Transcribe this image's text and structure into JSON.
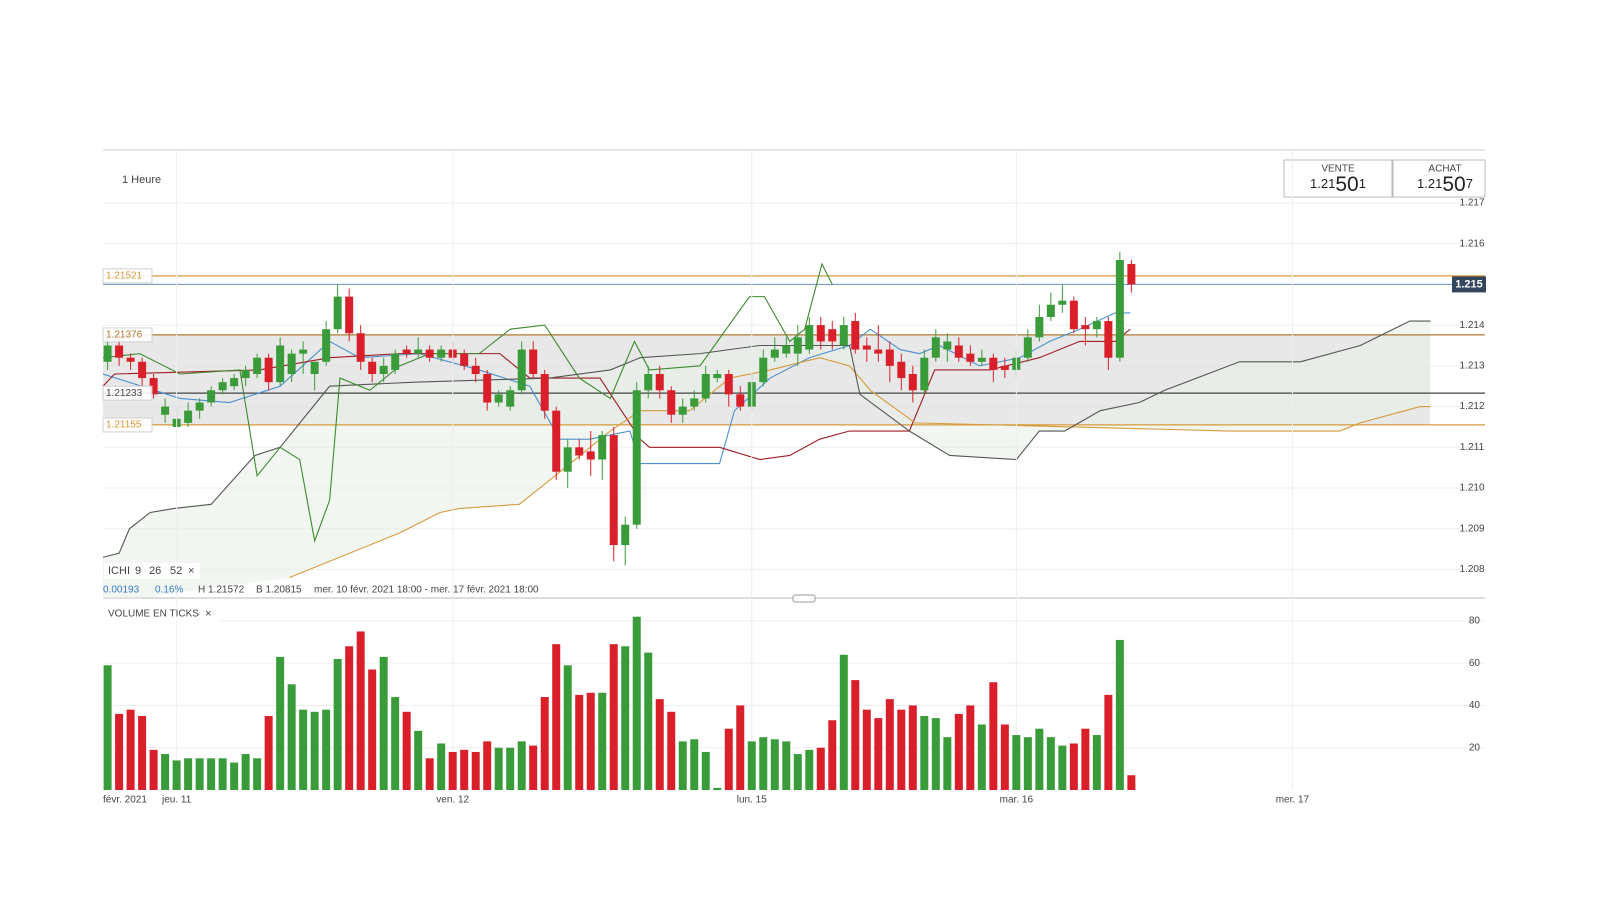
{
  "chart_data": [
    {
      "type": "candlestick",
      "timeframe": "1 Heure",
      "up_color": "#3a9b3a",
      "down_color": "#d9202a",
      "xlim": [
        -0.4,
        116.7
      ],
      "xticks": [
        {
          "value": 0,
          "label": "févr. 2021"
        },
        {
          "value": 6,
          "label": "jeu. 11"
        },
        {
          "value": 30,
          "label": "ven. 12"
        },
        {
          "value": 56,
          "label": "lun. 15"
        },
        {
          "value": 79,
          "label": "mar. 16"
        },
        {
          "value": 103,
          "label": "mer. 17"
        }
      ],
      "ylim": [
        1.2073,
        1.2183
      ],
      "yticks": [
        1.208,
        1.209,
        {
          "value": 1.21,
          "label": "1.210"
        },
        1.211,
        1.212,
        1.213,
        1.214,
        1.215,
        1.216,
        1.217
      ],
      "grid": true,
      "open": [
        1.2131,
        1.2135,
        1.2132,
        1.2131,
        1.2127,
        1.2118,
        1.2115,
        1.2116,
        1.2119,
        1.2121,
        1.2124,
        1.2125,
        1.2127,
        1.2128,
        1.2132,
        1.2126,
        1.2128,
        1.2133,
        1.2128,
        1.2131,
        1.2139,
        1.2147,
        1.2138,
        1.2131,
        1.2128,
        1.2129,
        1.2134,
        1.2133,
        1.2134,
        1.2132,
        1.2134,
        1.2133,
        1.213,
        1.2128,
        1.2121,
        1.212,
        1.2124,
        1.2134,
        1.2128,
        1.2119,
        1.2104,
        1.211,
        1.2109,
        1.2107,
        1.2113,
        1.2086,
        1.2091,
        1.2124,
        1.2128,
        1.2124,
        1.2118,
        1.212,
        1.2122,
        1.2127,
        1.2128,
        1.2123,
        1.212,
        1.2126,
        1.2132,
        1.2133,
        1.2133,
        1.2134,
        1.214,
        1.2139,
        1.2135,
        1.2141,
        1.2135,
        1.2134,
        1.2134,
        1.2131,
        1.2128,
        1.2124,
        1.2132,
        1.2134,
        1.2135,
        1.2133,
        1.2131,
        1.2132,
        1.213,
        1.2129,
        1.2132,
        1.2137,
        1.2142,
        1.2145,
        1.2146,
        1.214,
        1.2139,
        1.2141,
        1.2132,
        1.2155
      ],
      "high": [
        1.2137,
        1.2138,
        1.2133,
        1.2132,
        1.2128,
        1.2122,
        1.212,
        1.2121,
        1.2122,
        1.2125,
        1.2127,
        1.2128,
        1.213,
        1.2133,
        1.2133,
        1.2137,
        1.2134,
        1.2136,
        1.2131,
        1.2141,
        1.215,
        1.2149,
        1.214,
        1.2132,
        1.2132,
        1.2134,
        1.2135,
        1.2137,
        1.2135,
        1.2135,
        1.2136,
        1.2134,
        1.2132,
        1.2129,
        1.2124,
        1.2125,
        1.2136,
        1.2136,
        1.2129,
        1.212,
        1.2112,
        1.2112,
        1.2114,
        1.2114,
        1.2115,
        1.2093,
        1.2126,
        1.213,
        1.213,
        1.2125,
        1.2122,
        1.2124,
        1.213,
        1.2129,
        1.2129,
        1.2125,
        1.2128,
        1.2134,
        1.2137,
        1.2137,
        1.214,
        1.2142,
        1.2142,
        1.2141,
        1.2142,
        1.2143,
        1.2137,
        1.214,
        1.2136,
        1.2133,
        1.213,
        1.2134,
        1.2139,
        1.2138,
        1.2137,
        1.2135,
        1.2134,
        1.2133,
        1.2132,
        1.2134,
        1.2139,
        1.2145,
        1.2148,
        1.215,
        1.2147,
        1.2142,
        1.2142,
        1.2142,
        1.2158,
        1.2156
      ],
      "low": [
        1.2129,
        1.213,
        1.2129,
        1.2125,
        1.2122,
        1.2116,
        1.2115,
        1.2115,
        1.2117,
        1.212,
        1.2123,
        1.2124,
        1.2125,
        1.2127,
        1.2124,
        1.2125,
        1.2126,
        1.2128,
        1.2124,
        1.213,
        1.2138,
        1.2136,
        1.2129,
        1.2126,
        1.2126,
        1.2128,
        1.2132,
        1.2132,
        1.2131,
        1.2131,
        1.2131,
        1.2129,
        1.2126,
        1.2119,
        1.212,
        1.2119,
        1.2123,
        1.2127,
        1.2117,
        1.2102,
        1.21,
        1.2107,
        1.2103,
        1.2102,
        1.2082,
        1.2081,
        1.209,
        1.2122,
        1.2122,
        1.2116,
        1.2116,
        1.2119,
        1.2121,
        1.2126,
        1.212,
        1.2119,
        1.2119,
        1.2125,
        1.2131,
        1.2132,
        1.213,
        1.2133,
        1.2134,
        1.2134,
        1.2134,
        1.2133,
        1.2131,
        1.2131,
        1.2126,
        1.2124,
        1.2121,
        1.2123,
        1.2131,
        1.2131,
        1.2131,
        1.213,
        1.213,
        1.2126,
        1.2127,
        1.2127,
        1.2131,
        1.2136,
        1.2141,
        1.2143,
        1.2138,
        1.2135,
        1.2137,
        1.2129,
        1.2131,
        1.2148
      ],
      "close": [
        1.2135,
        1.2132,
        1.2131,
        1.2127,
        1.2123,
        1.212,
        1.2117,
        1.2119,
        1.2121,
        1.2124,
        1.2126,
        1.2127,
        1.2129,
        1.2132,
        1.2126,
        1.2135,
        1.2133,
        1.2134,
        1.2131,
        1.2139,
        1.2147,
        1.2138,
        1.2131,
        1.2128,
        1.213,
        1.2133,
        1.2133,
        1.2134,
        1.2132,
        1.2134,
        1.2132,
        1.213,
        1.2128,
        1.2121,
        1.2123,
        1.2124,
        1.2134,
        1.2128,
        1.2119,
        1.2104,
        1.211,
        1.2108,
        1.2107,
        1.2113,
        1.2086,
        1.2091,
        1.2124,
        1.2128,
        1.2124,
        1.2118,
        1.212,
        1.2122,
        1.2128,
        1.2128,
        1.2123,
        1.212,
        1.2126,
        1.2132,
        1.2134,
        1.2135,
        1.2137,
        1.214,
        1.2136,
        1.2136,
        1.214,
        1.2134,
        1.2134,
        1.2133,
        1.213,
        1.2127,
        1.2124,
        1.2132,
        1.2137,
        1.2136,
        1.2132,
        1.2131,
        1.2132,
        1.2129,
        1.2129,
        1.2132,
        1.2137,
        1.2142,
        1.2145,
        1.2146,
        1.2139,
        1.2139,
        1.2141,
        1.2132,
        1.2156,
        1.215
      ],
      "lines": [
        {
          "color": "#4a8fd0",
          "x": [
            -0.4,
            6.3,
            10.6,
            15.0,
            19.3,
            21.9,
            27.1,
            32.3,
            36.7,
            39.3,
            41.9,
            45.4,
            46.3,
            53.2,
            54.5,
            57.6,
            61.0,
            64.5,
            66.3,
            68.9,
            70.6,
            72.3,
            75.8,
            79.3,
            81.9,
            84.5,
            87.6,
            88.9
          ],
          "values": [
            1.2128,
            1.2122,
            1.2121,
            1.2125,
            1.2136,
            1.2132,
            1.2133,
            1.2129,
            1.2125,
            1.2112,
            1.2112,
            1.2114,
            1.2106,
            1.2106,
            1.2119,
            1.2127,
            1.2132,
            1.2135,
            1.2139,
            1.2134,
            1.2133,
            1.2135,
            1.213,
            1.2132,
            1.2136,
            1.2139,
            1.2143,
            1.2143
          ]
        },
        {
          "color": "#a01c22",
          "x": [
            -0.4,
            0.6,
            13.2,
            19.3,
            25.4,
            34.1,
            36.7,
            42.8,
            46.3,
            47.1,
            53.2,
            56.7,
            59.3,
            61.9,
            64.5,
            69.7,
            71.9,
            76.7,
            81.0,
            84.5,
            87.6,
            88.9
          ],
          "values": [
            1.2125,
            1.2128,
            1.2129,
            1.2132,
            1.2133,
            1.2133,
            1.2127,
            1.2127,
            1.2112,
            1.211,
            1.211,
            1.2107,
            1.2108,
            1.2112,
            1.2114,
            1.2114,
            1.2129,
            1.2129,
            1.2132,
            1.2136,
            1.2136,
            1.2139
          ]
        },
        {
          "color": "#d69a3c",
          "x": [
            15.8,
            25.4,
            28.9,
            30.6,
            35.8,
            38.9,
            43.7,
            46.3,
            50.6,
            54.1,
            57.6,
            61.9,
            64.5,
            66.3,
            70.2,
            97.6,
            107.1,
            108.9,
            114.1,
            115.0
          ],
          "values": [
            1.2078,
            1.2089,
            1.2094,
            1.2095,
            1.2096,
            1.2103,
            1.2114,
            1.2119,
            1.2119,
            1.2127,
            1.2129,
            1.2132,
            1.213,
            1.2124,
            1.2116,
            1.2114,
            1.2114,
            1.2116,
            1.212,
            1.212
          ]
        },
        {
          "color": "#555555",
          "x": [
            -0.4,
            1.0,
            1.9,
            3.7,
            5.8,
            9.0,
            12.8,
            15.0,
            19.3,
            26.7,
            38.4,
            43.7,
            46.3,
            51.5,
            56.7,
            64.5,
            65.4,
            69.7,
            73.2,
            79.0,
            81.0,
            83.2,
            86.3,
            89.7,
            91.9,
            98.4,
            103.7,
            108.9,
            113.2,
            115.0
          ],
          "values": [
            1.2083,
            1.2084,
            1.209,
            1.2094,
            1.2095,
            1.2096,
            1.2108,
            1.211,
            1.2125,
            1.2126,
            1.2127,
            1.2129,
            1.2132,
            1.2133,
            1.2135,
            1.2135,
            1.2123,
            1.2114,
            1.2108,
            1.2107,
            1.2114,
            1.2114,
            1.2119,
            1.2121,
            1.2124,
            1.2131,
            1.2131,
            1.2135,
            1.2141,
            1.2141
          ]
        },
        {
          "color": "#3c8a2e",
          "x": [
            -0.4,
            2.8,
            6.3,
            11.5,
            13.0,
            15.0,
            16.7,
            18.0,
            19.3,
            20.2,
            22.8,
            25.4,
            28.0,
            32.3,
            35.0,
            38.0,
            41.0,
            43.7,
            45.8,
            47.1,
            51.5,
            55.8,
            57.1,
            59.3,
            60.6,
            62.1,
            63.0
          ],
          "values": [
            1.2132,
            1.2133,
            1.2128,
            1.2129,
            1.2103,
            1.211,
            1.2107,
            1.2087,
            1.2097,
            1.2127,
            1.2124,
            1.213,
            1.2133,
            1.2133,
            1.2139,
            1.214,
            1.2127,
            1.2122,
            1.2136,
            1.2129,
            1.213,
            1.2147,
            1.2147,
            1.2136,
            1.2139,
            1.2155,
            1.215
          ]
        }
      ],
      "levels": [
        {
          "value": 1.21521,
          "color": "#d69a3c"
        },
        {
          "value": 1.21376,
          "color": "#b07a30"
        },
        {
          "value": 1.21233,
          "color": "#444444"
        },
        {
          "value": 1.21155,
          "color": "#d69a3c"
        }
      ],
      "last_price": {
        "value": 1.215,
        "color": "#6a8fd0"
      },
      "indicator": {
        "name": "ICHI",
        "params": [
          9,
          26,
          52
        ],
        "close": "×"
      },
      "info": {
        "change": "0.00193",
        "change_pct": "0.16%",
        "high": "H 1.21572",
        "low": "B 1.20815",
        "range": "mer. 10 févr. 2021 18:00 - mer. 17 févr. 2021 18:00"
      }
    },
    {
      "type": "bar",
      "title": "VOLUME EN TICKS",
      "close": "×",
      "ylim": [
        0,
        88
      ],
      "yticks": [
        20,
        40,
        60,
        80
      ],
      "values": [
        59,
        36,
        38,
        35,
        19,
        17,
        14,
        15,
        15,
        15,
        15,
        13,
        17,
        15,
        35,
        63,
        50,
        38,
        37,
        38,
        62,
        68,
        75,
        57,
        63,
        44,
        37,
        28,
        15,
        22,
        18,
        19,
        18,
        23,
        20,
        20,
        23,
        21,
        44,
        69,
        59,
        45,
        46,
        46,
        69,
        68,
        82,
        65,
        43,
        37,
        23,
        24,
        18,
        1,
        29,
        40,
        23,
        25,
        24,
        23,
        17,
        19,
        20,
        33,
        64,
        52,
        38,
        34,
        43,
        38,
        40,
        35,
        34,
        25,
        36,
        40,
        31,
        51,
        31,
        26,
        25,
        29,
        25,
        21,
        22,
        29,
        26,
        45,
        71,
        7
      ]
    }
  ],
  "quote": {
    "sell": {
      "label": "VENTE",
      "prefix": "1.21",
      "big": "50",
      "suffix": "1"
    },
    "buy": {
      "label": "ACHAT",
      "prefix": "1.21",
      "big": "50",
      "suffix": "7"
    }
  }
}
